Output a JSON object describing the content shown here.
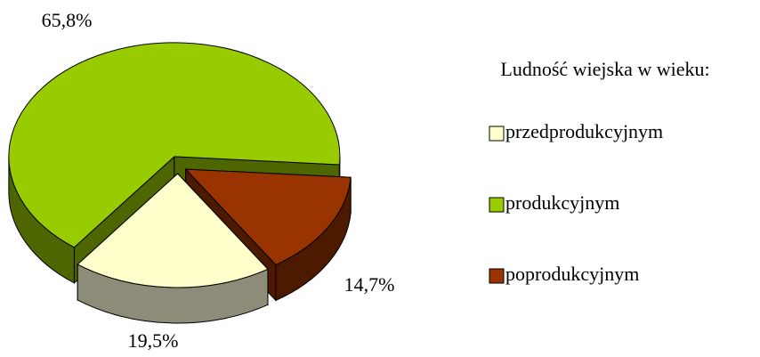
{
  "chart_data": {
    "type": "pie",
    "legend_title": "Ludność wiejska w wieku:",
    "categories": [
      "przedprodukcyjnym",
      "produkcyjnym",
      "poprodukcyjnym"
    ],
    "values": [
      19.5,
      65.8,
      14.7
    ],
    "value_labels": [
      "19,5%",
      "65,8%",
      "14,7%"
    ],
    "colors": [
      "#ffffcc",
      "#99cc00",
      "#993300"
    ],
    "legend": "right"
  }
}
